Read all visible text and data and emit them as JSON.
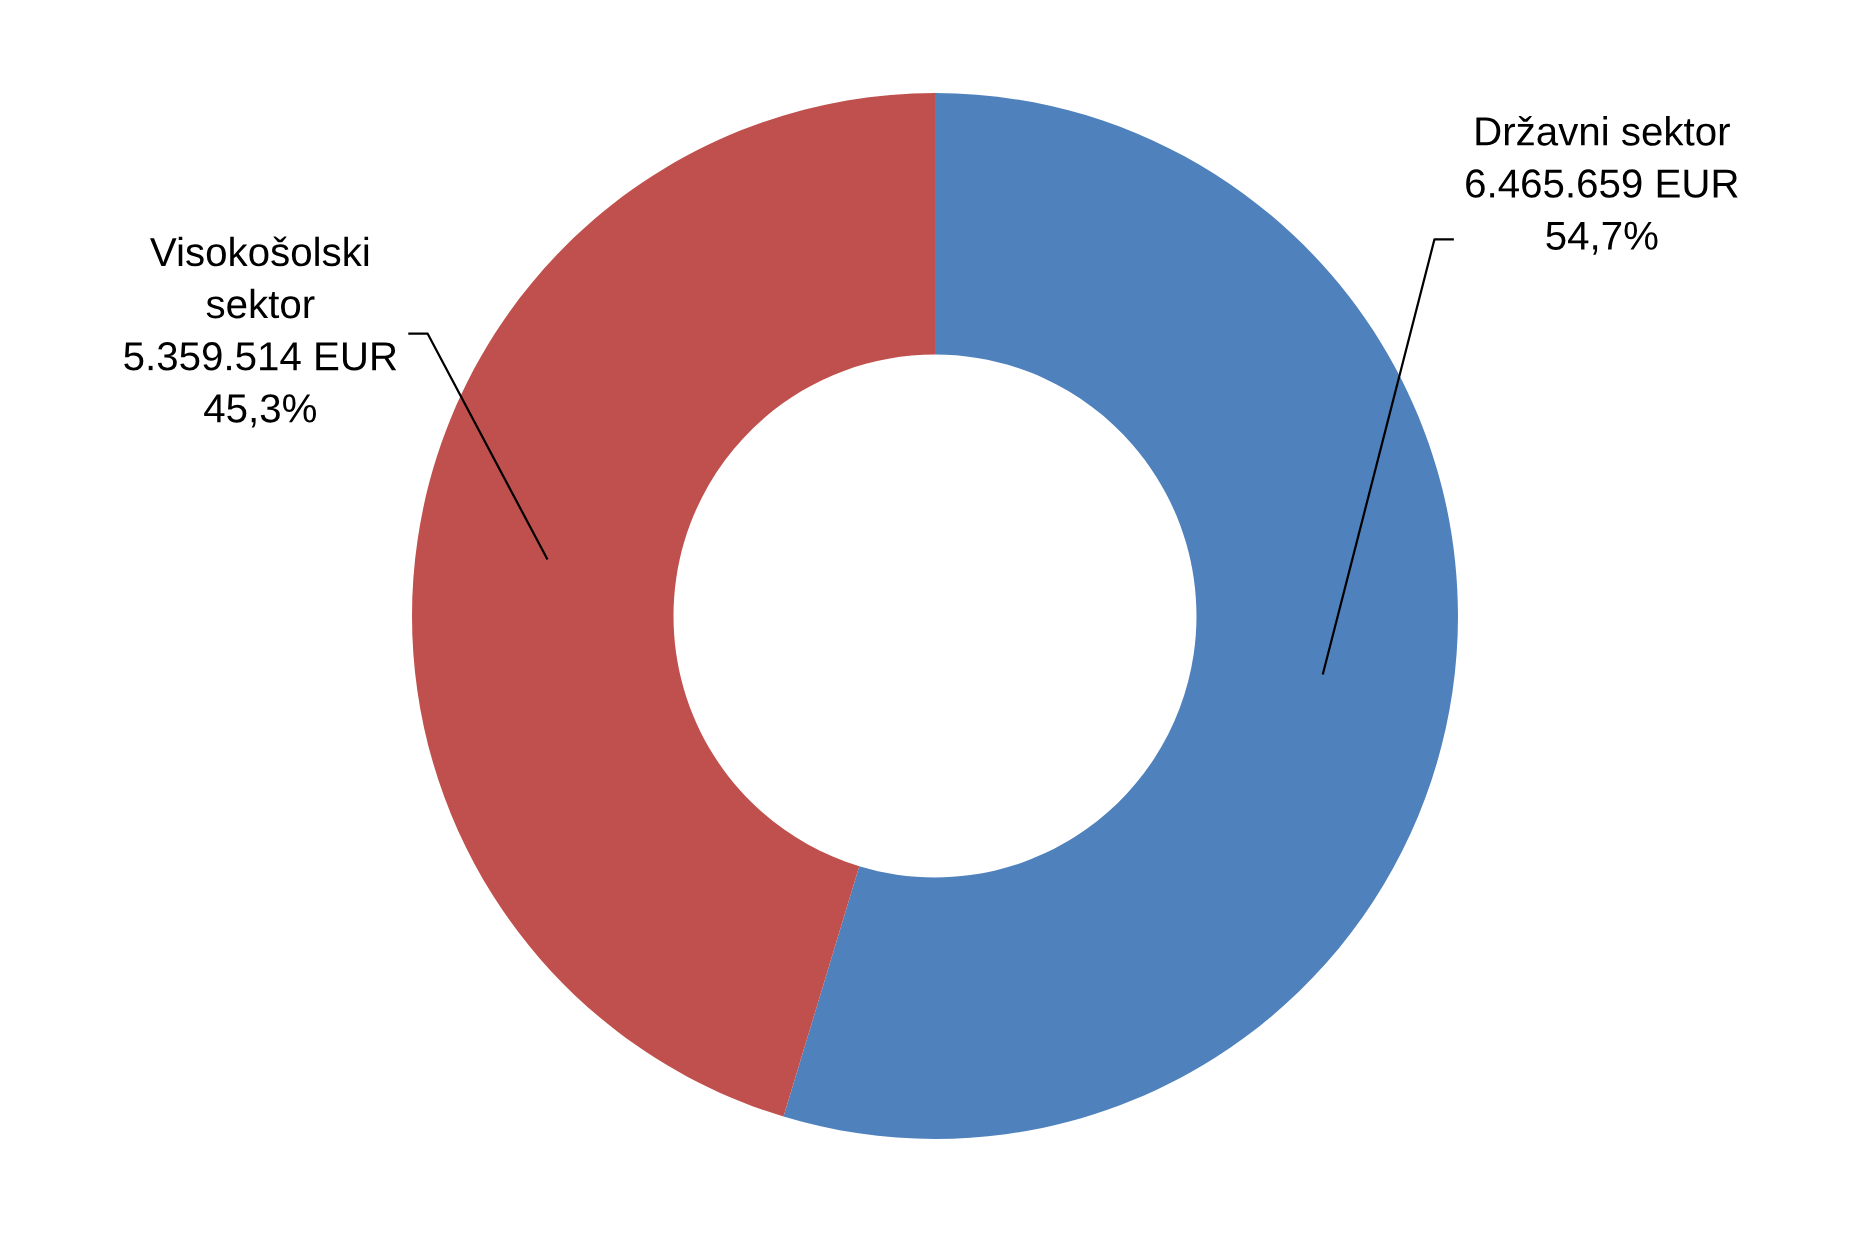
{
  "chart_data": {
    "type": "donut",
    "categories": [
      "Državni sektor",
      "Visokošolski sektor"
    ],
    "values": [
      6465659,
      5359514
    ],
    "colors": [
      "#4f81bd",
      "#c0504d"
    ],
    "value_labels": [
      "6.465.659 EUR\n54,7%",
      "5.359.514 EUR\n45,3%"
    ]
  }
}
